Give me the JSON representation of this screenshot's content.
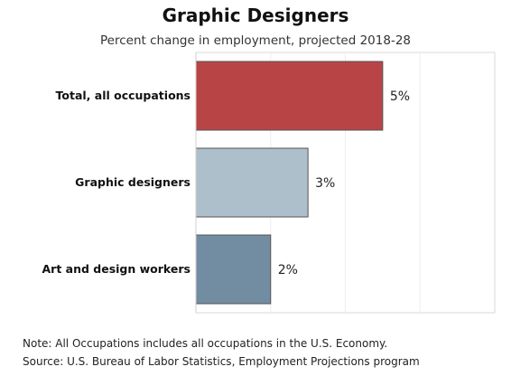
{
  "chart_data": {
    "type": "bar",
    "orientation": "horizontal",
    "title": "Graphic Designers",
    "subtitle": "Percent change in employment, projected 2018-28",
    "categories": [
      "Total, all occupations",
      "Graphic designers",
      "Art and design workers"
    ],
    "values": [
      5,
      3,
      2
    ],
    "value_labels": [
      "5%",
      "3%",
      "2%"
    ],
    "colors": [
      "#b94446",
      "#adbfcb",
      "#728da2"
    ],
    "xlim": [
      0,
      8
    ],
    "grid": true,
    "legend": "none"
  },
  "notes": {
    "note": "Note: All Occupations includes all occupations in the U.S. Economy.",
    "source": "Source: U.S. Bureau of Labor Statistics, Employment Projections program"
  }
}
